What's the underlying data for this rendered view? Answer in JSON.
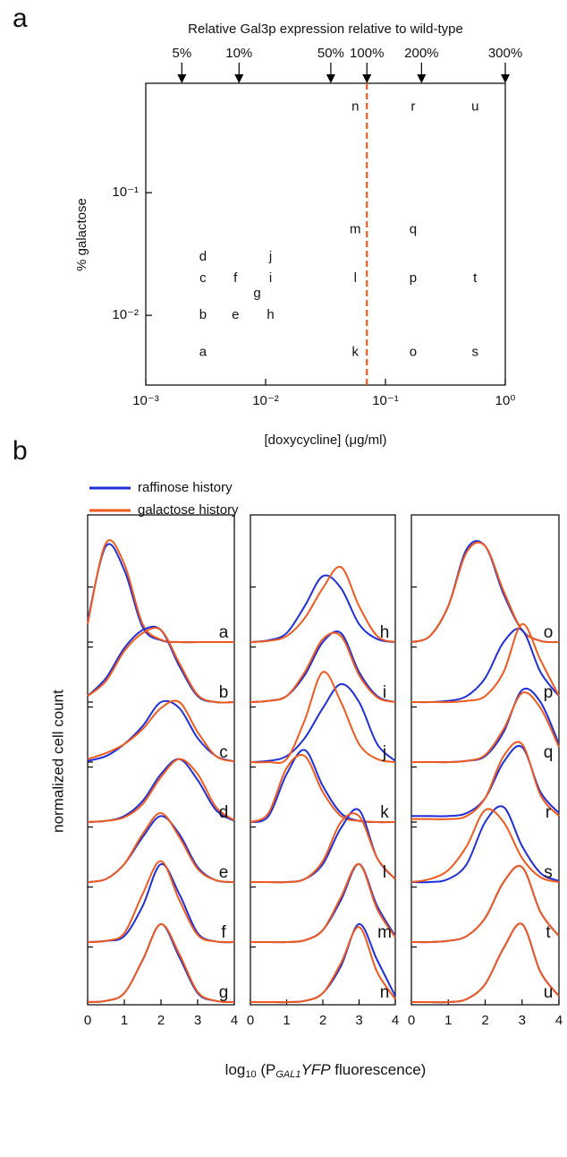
{
  "chart_data": [
    {
      "type": "scatter",
      "panel_label": "a",
      "title": "Relative Gal3p expression relative to wild-type",
      "xlabel": "[doxycycline] (μg/ml)",
      "ylabel": "% galactose",
      "log": true,
      "xlim": [
        0.001,
        1
      ],
      "ylim": [
        0.0027,
        0.78
      ],
      "xticks": [
        {
          "value": 0.001,
          "label": "10⁻³"
        },
        {
          "value": 0.01,
          "label": "10⁻²"
        },
        {
          "value": 0.1,
          "label": "10⁻¹"
        },
        {
          "value": 1,
          "label": "10⁰"
        }
      ],
      "yticks": [
        {
          "value": 0.01,
          "label": "10⁻²"
        },
        {
          "value": 0.1,
          "label": "10⁻¹"
        }
      ],
      "x2ticks": [
        {
          "value": 0.002,
          "label": "5%"
        },
        {
          "value": 0.006,
          "label": "10%"
        },
        {
          "value": 0.035,
          "label": "50%"
        },
        {
          "value": 0.07,
          "label": "100%"
        },
        {
          "value": 0.2,
          "label": "200%"
        },
        {
          "value": 1,
          "label": "300%"
        }
      ],
      "reference_x": 0.07,
      "reference_color": "#f05a1e",
      "labels": [
        "a",
        "b",
        "c",
        "d",
        "e",
        "f",
        "g",
        "h",
        "i",
        "j",
        "k",
        "l",
        "m",
        "n",
        "o",
        "p",
        "q",
        "r",
        "s",
        "t",
        "u"
      ],
      "x": [
        0.003,
        0.003,
        0.003,
        0.003,
        0.0056,
        0.0056,
        0.0085,
        0.011,
        0.011,
        0.011,
        0.056,
        0.056,
        0.056,
        0.056,
        0.17,
        0.17,
        0.17,
        0.17,
        0.56,
        0.56,
        0.56
      ],
      "y": [
        0.005,
        0.01,
        0.02,
        0.03,
        0.01,
        0.02,
        0.015,
        0.01,
        0.02,
        0.03,
        0.005,
        0.02,
        0.05,
        0.5,
        0.005,
        0.02,
        0.05,
        0.5,
        0.005,
        0.02,
        0.5
      ]
    },
    {
      "type": "ridgeline",
      "panel_label": "b",
      "xlabel": [
        "log",
        "10",
        " (P",
        "GAL1",
        "YFP",
        " fluorescence)"
      ],
      "ylabel": "normalized cell count",
      "xlim": [
        0,
        4
      ],
      "xticks": [
        0,
        1,
        2,
        3,
        4
      ],
      "x": [
        0,
        0.5,
        1,
        1.5,
        2,
        2.5,
        3,
        3.5,
        4
      ],
      "categories": [
        "a",
        "b",
        "c",
        "d",
        "e",
        "f",
        "g",
        "h",
        "i",
        "j",
        "k",
        "l",
        "m",
        "n",
        "o",
        "p",
        "q",
        "r",
        "s",
        "t",
        "u"
      ],
      "series": [
        {
          "name": "raffinose history",
          "color": "#1f2fd6",
          "values": [
            [
              0.35,
              1.6,
              1.2,
              0.25,
              0.03,
              0,
              0,
              0,
              0
            ],
            [
              0.1,
              0.4,
              0.9,
              1.2,
              1.2,
              0.6,
              0.1,
              0,
              0
            ],
            [
              0.02,
              0.1,
              0.3,
              0.6,
              1.0,
              0.9,
              0.4,
              0.1,
              0.01
            ],
            [
              0,
              0.02,
              0.1,
              0.35,
              0.8,
              1.05,
              0.7,
              0.2,
              0.02
            ],
            [
              0,
              0.05,
              0.3,
              0.75,
              1.1,
              0.8,
              0.25,
              0.03,
              0
            ],
            [
              0,
              0.02,
              0.1,
              0.6,
              1.3,
              0.8,
              0.15,
              0.01,
              0
            ],
            [
              0,
              0.02,
              0.15,
              0.7,
              1.3,
              0.75,
              0.15,
              0.02,
              0
            ],
            [
              0,
              0.03,
              0.15,
              0.6,
              1.1,
              0.9,
              0.3,
              0.05,
              0
            ],
            [
              0,
              0.02,
              0.1,
              0.45,
              1.0,
              1.15,
              0.5,
              0.1,
              0
            ],
            [
              0,
              0.02,
              0.1,
              0.4,
              0.9,
              1.3,
              1.0,
              0.3,
              0.02
            ],
            [
              0,
              0.1,
              0.8,
              1.2,
              0.6,
              0.15,
              0.02,
              0,
              0
            ],
            [
              0,
              0,
              0,
              0.05,
              0.3,
              0.9,
              1.2,
              0.4,
              0.05
            ],
            [
              0,
              0,
              0,
              0.03,
              0.2,
              0.7,
              1.3,
              0.6,
              0.1
            ],
            [
              0,
              0,
              0,
              0.02,
              0.15,
              0.6,
              1.3,
              0.7,
              0.1
            ],
            [
              0,
              0.1,
              0.6,
              1.55,
              1.6,
              0.8,
              0.2,
              0.02,
              0
            ],
            [
              0,
              0,
              0.02,
              0.1,
              0.4,
              1.0,
              1.2,
              0.5,
              0.1
            ],
            [
              0,
              0,
              0,
              0.02,
              0.1,
              0.5,
              1.2,
              1.0,
              0.3
            ],
            [
              0.1,
              0.1,
              0.1,
              0.15,
              0.4,
              1.0,
              1.25,
              0.5,
              0.15
            ],
            [
              0,
              0,
              0.05,
              0.3,
              1.0,
              1.25,
              0.6,
              0.15,
              0.02
            ],
            [
              0,
              0,
              0.02,
              0.1,
              0.4,
              1.0,
              1.25,
              0.5,
              0.1
            ],
            [
              0,
              0,
              0,
              0.05,
              0.3,
              0.9,
              1.3,
              0.5,
              0.1
            ]
          ]
        },
        {
          "name": "galactose history",
          "color": "#f05a1e",
          "values": [
            [
              0.3,
              1.65,
              1.3,
              0.3,
              0.04,
              0,
              0,
              0,
              0
            ],
            [
              0.1,
              0.35,
              0.85,
              1.15,
              1.2,
              0.65,
              0.12,
              0,
              0
            ],
            [
              0.05,
              0.15,
              0.3,
              0.55,
              0.9,
              1.0,
              0.5,
              0.1,
              0.01
            ],
            [
              0,
              0.02,
              0.08,
              0.3,
              0.75,
              1.05,
              0.8,
              0.25,
              0.03
            ],
            [
              0,
              0.05,
              0.3,
              0.8,
              1.15,
              0.75,
              0.22,
              0.03,
              0
            ],
            [
              0,
              0.02,
              0.15,
              0.8,
              1.35,
              0.7,
              0.12,
              0.01,
              0
            ],
            [
              0,
              0.02,
              0.15,
              0.7,
              1.3,
              0.8,
              0.17,
              0.02,
              0
            ],
            [
              0,
              0.02,
              0.1,
              0.4,
              0.9,
              1.25,
              0.6,
              0.1,
              0
            ],
            [
              0,
              0.02,
              0.1,
              0.5,
              1.05,
              1.1,
              0.45,
              0.08,
              0
            ],
            [
              0,
              0,
              0.05,
              0.7,
              1.5,
              1.0,
              0.3,
              0.05,
              0
            ],
            [
              0,
              0.15,
              0.9,
              1.1,
              0.5,
              0.1,
              0.02,
              0,
              0
            ],
            [
              0,
              0,
              0,
              0.05,
              0.35,
              1.0,
              1.1,
              0.4,
              0.05
            ],
            [
              0,
              0,
              0,
              0.03,
              0.2,
              0.75,
              1.3,
              0.55,
              0.08
            ],
            [
              0,
              0,
              0,
              0.02,
              0.15,
              0.65,
              1.25,
              0.5,
              0.05
            ],
            [
              0,
              0.1,
              0.6,
              1.5,
              1.6,
              0.85,
              0.2,
              0.02,
              0
            ],
            [
              0,
              0,
              0,
              0.02,
              0.1,
              0.5,
              1.3,
              0.7,
              0.1
            ],
            [
              0,
              0,
              0,
              0.02,
              0.12,
              0.55,
              1.15,
              0.9,
              0.25
            ],
            [
              0.05,
              0.05,
              0.05,
              0.1,
              0.4,
              1.1,
              1.3,
              0.45,
              0.1
            ],
            [
              0,
              0.05,
              0.2,
              0.6,
              1.2,
              1.0,
              0.4,
              0.08,
              0
            ],
            [
              0,
              0,
              0.02,
              0.1,
              0.4,
              1.0,
              1.25,
              0.5,
              0.1
            ],
            [
              0,
              0,
              0,
              0.05,
              0.3,
              0.9,
              1.3,
              0.5,
              0.1
            ]
          ]
        }
      ]
    }
  ]
}
